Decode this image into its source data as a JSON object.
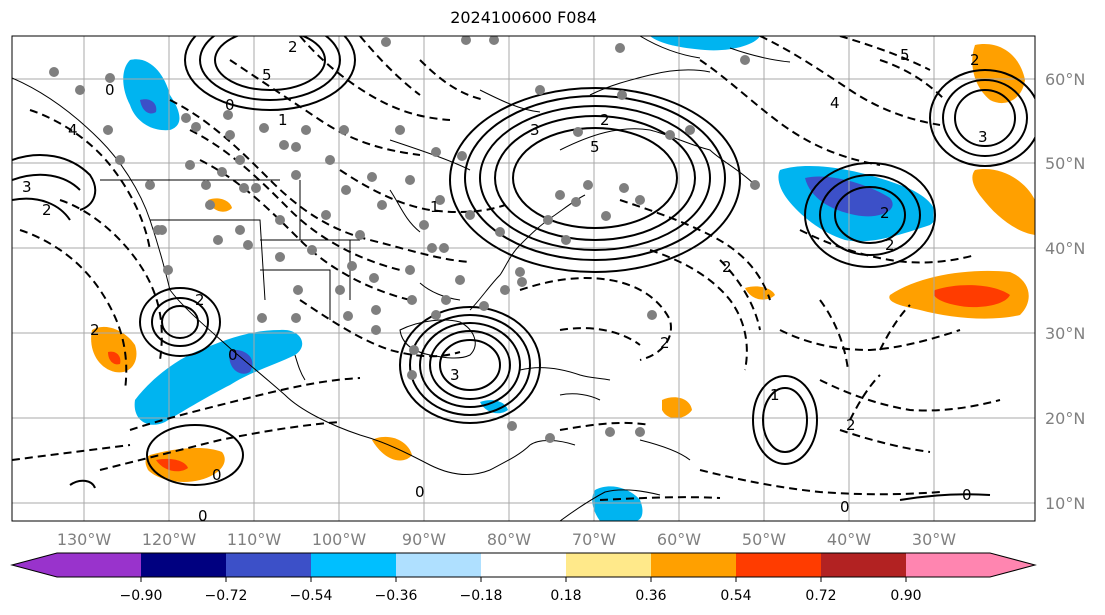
{
  "title": "2024100600 F084",
  "map": {
    "longitude_labels": [
      "130°W",
      "120°W",
      "110°W",
      "100°W",
      "90°W",
      "80°W",
      "70°W",
      "60°W",
      "50°W",
      "40°W",
      "30°W"
    ],
    "latitude_labels": [
      "60°N",
      "50°N",
      "40°N",
      "30°N",
      "20°N",
      "10°N"
    ],
    "contour_labels": [
      "0",
      "1",
      "2",
      "3",
      "4",
      "5",
      "0",
      "2",
      "3",
      "5",
      "2",
      "3",
      "2",
      "4",
      "5",
      "2",
      "0",
      "2",
      "3",
      "1",
      "2",
      "0",
      "2",
      "1",
      "0",
      "0",
      "0",
      "0",
      "2",
      "2",
      "2"
    ],
    "shading_colors": {
      "strong_negative": "#3c50c8",
      "negative": "#00b4f0",
      "positive": "#ffa000",
      "strong_positive": "#ff3c00"
    }
  },
  "colorbar": {
    "ticks": [
      "−0.90",
      "−0.72",
      "−0.54",
      "−0.36",
      "−0.18",
      "0.18",
      "0.36",
      "0.54",
      "0.72",
      "0.90"
    ],
    "colors": [
      "#9933cc",
      "#000080",
      "#3c50c8",
      "#00bfff",
      "#afe0ff",
      "#ffffff",
      "#ffe98a",
      "#ffa000",
      "#ff3c00",
      "#b22222",
      "#ff85b0"
    ]
  }
}
